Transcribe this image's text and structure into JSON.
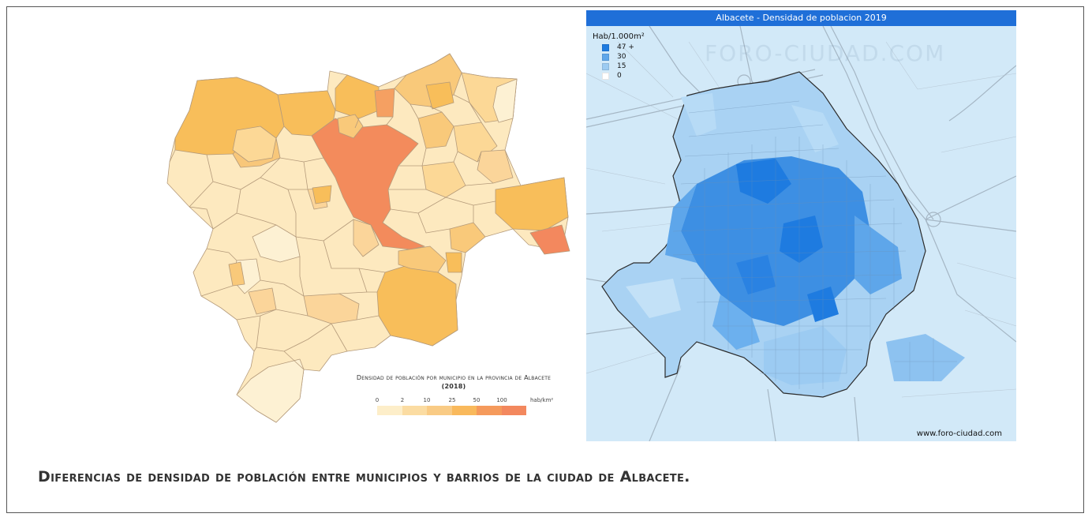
{
  "left_map": {
    "title": "Densidad de población por municipio en la provincia de Albacete",
    "year": "(2018)",
    "unit": "hab/km²",
    "scale_ticks": [
      "0",
      "2",
      "10",
      "25",
      "50",
      "100"
    ],
    "scale_colors": [
      "#fdeec9",
      "#fbdca2",
      "#f9cb85",
      "#f9b95c",
      "#f59a5c",
      "#f3885e"
    ]
  },
  "right_map": {
    "title": "Albacete - Densidad de poblacion 2019",
    "legend_title": "Hab/1.000m²",
    "legend": [
      {
        "label": "47 +",
        "color": "#1e7be0"
      },
      {
        "label": "30",
        "color": "#5ea6ea"
      },
      {
        "label": "15",
        "color": "#9ccbf2"
      },
      {
        "label": "0",
        "color": "#ffffff"
      }
    ],
    "credit": "www.foro-ciudad.com",
    "watermark": "FORO-CIUDAD.COM"
  },
  "caption": "Diferencias de densidad de población entre municipios y barrios de la ciudad de Albacete."
}
